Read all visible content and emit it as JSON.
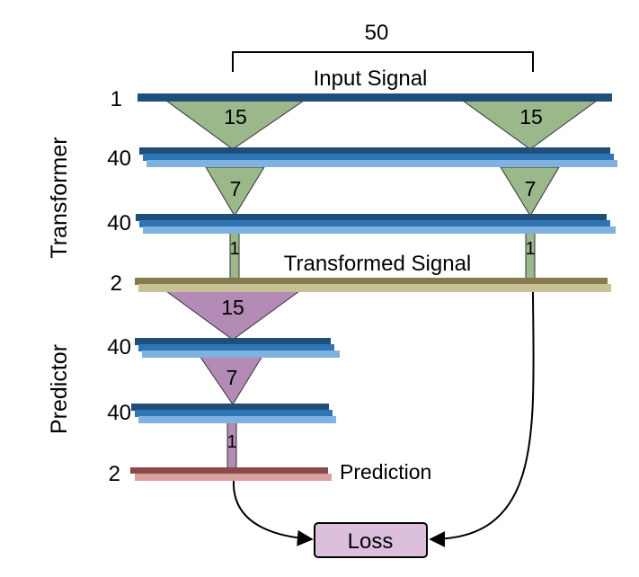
{
  "top": {
    "span_label": "50",
    "input_label": "Input Signal"
  },
  "side": {
    "transformer": "Transformer",
    "predictor": "Predictor"
  },
  "rows": [
    {
      "id": "input",
      "count": "1"
    },
    {
      "id": "t1",
      "count": "40"
    },
    {
      "id": "t2",
      "count": "40"
    },
    {
      "id": "transformed",
      "count": "2"
    },
    {
      "id": "p1",
      "count": "40"
    },
    {
      "id": "p2",
      "count": "40"
    },
    {
      "id": "prediction",
      "count": "2"
    }
  ],
  "kernels": {
    "t_left_1": "15",
    "t_right_1": "15",
    "t_left_2": "7",
    "t_right_2": "7",
    "t_left_3": "1",
    "t_right_3": "1",
    "p_1": "15",
    "p_2": "7",
    "p_3": "1"
  },
  "labels": {
    "transformed": "Transformed Signal",
    "prediction": "Prediction",
    "loss": "Loss"
  },
  "colors": {
    "dark_blue": "#1f4e79",
    "mid_blue": "#2e75b6",
    "light_blue": "#7fb2e0",
    "green": "#9ab88a",
    "purple": "#b48ab6",
    "olive_dark": "#857a4e",
    "olive_light": "#c8c197",
    "red_dark": "#8b4a4a",
    "red_light": "#d9a0a0",
    "loss_fill": "#dbbfdc"
  }
}
